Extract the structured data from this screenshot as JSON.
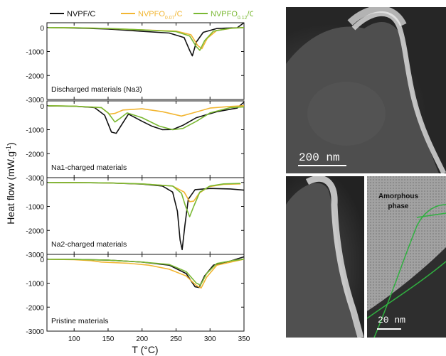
{
  "chart_data": {
    "type": "line",
    "xlabel": "T (°C)",
    "ylabel": "Heat flow (mW.g",
    "ylabel_sup": "-1",
    "ylabel_close": ")",
    "xlim": [
      60,
      350
    ],
    "x_ticks": [
      "100",
      "150",
      "200",
      "250",
      "300",
      "350"
    ],
    "x_tick_values": [
      100,
      150,
      200,
      250,
      300,
      350
    ],
    "ylim": [
      -3000,
      200
    ],
    "y_ticks": [
      "0",
      "-1000",
      "-2000",
      "-3000"
    ],
    "y_tick_values": [
      0,
      -1000,
      -2000,
      -3000
    ],
    "legend": [
      {
        "base": "NVPF/C",
        "sub": "",
        "tail": "",
        "color": "#111111"
      },
      {
        "base": "NVPFO",
        "sub": "0.07",
        "tail": "/C",
        "color": "#f2b632"
      },
      {
        "base": "NVPFO",
        "sub": "0.12",
        "tail": "/C",
        "color": "#7ab833"
      }
    ],
    "panels": [
      {
        "label": "Discharged materials (Na3)",
        "series": [
          {
            "color": "#111111",
            "points": [
              [
                62,
                0
              ],
              [
                100,
                -20
              ],
              [
                150,
                -60
              ],
              [
                200,
                -160
              ],
              [
                240,
                -230
              ],
              [
                262,
                -420
              ],
              [
                270,
                -950
              ],
              [
                274,
                -1180
              ],
              [
                280,
                -600
              ],
              [
                290,
                -200
              ],
              [
                310,
                -40
              ],
              [
                340,
                -10
              ],
              [
                350,
                200
              ]
            ]
          },
          {
            "color": "#f2b632",
            "points": [
              [
                62,
                0
              ],
              [
                100,
                -10
              ],
              [
                150,
                -40
              ],
              [
                200,
                -100
              ],
              [
                250,
                -150
              ],
              [
                272,
                -300
              ],
              [
                282,
                -750
              ],
              [
                288,
                -880
              ],
              [
                296,
                -450
              ],
              [
                310,
                -120
              ],
              [
                335,
                -20
              ],
              [
                350,
                0
              ]
            ]
          },
          {
            "color": "#7ab833",
            "points": [
              [
                62,
                0
              ],
              [
                100,
                -10
              ],
              [
                150,
                -40
              ],
              [
                200,
                -100
              ],
              [
                250,
                -170
              ],
              [
                270,
                -350
              ],
              [
                280,
                -800
              ],
              [
                285,
                -950
              ],
              [
                292,
                -550
              ],
              [
                305,
                -150
              ],
              [
                330,
                -30
              ],
              [
                350,
                0
              ]
            ]
          }
        ]
      },
      {
        "label": "Na1-charged materials",
        "series": [
          {
            "color": "#111111",
            "points": [
              [
                62,
                -10
              ],
              [
                100,
                -20
              ],
              [
                130,
                -80
              ],
              [
                145,
                -400
              ],
              [
                155,
                -1100
              ],
              [
                162,
                -1150
              ],
              [
                172,
                -700
              ],
              [
                180,
                -350
              ],
              [
                200,
                -650
              ],
              [
                215,
                -860
              ],
              [
                230,
                -1000
              ],
              [
                245,
                -990
              ],
              [
                260,
                -820
              ],
              [
                280,
                -500
              ],
              [
                310,
                -250
              ],
              [
                340,
                -100
              ],
              [
                350,
                150
              ]
            ]
          },
          {
            "color": "#f2b632",
            "points": [
              [
                62,
                0
              ],
              [
                100,
                -20
              ],
              [
                140,
                -80
              ],
              [
                152,
                -350
              ],
              [
                160,
                -320
              ],
              [
                172,
                -180
              ],
              [
                200,
                -130
              ],
              [
                230,
                -250
              ],
              [
                258,
                -430
              ],
              [
                275,
                -300
              ],
              [
                300,
                -100
              ],
              [
                330,
                -30
              ],
              [
                350,
                0
              ]
            ]
          },
          {
            "color": "#7ab833",
            "points": [
              [
                62,
                0
              ],
              [
                100,
                -20
              ],
              [
                140,
                -80
              ],
              [
                150,
                -300
              ],
              [
                160,
                -680
              ],
              [
                168,
                -520
              ],
              [
                178,
                -300
              ],
              [
                200,
                -500
              ],
              [
                225,
                -850
              ],
              [
                245,
                -1000
              ],
              [
                260,
                -950
              ],
              [
                280,
                -650
              ],
              [
                300,
                -300
              ],
              [
                330,
                -80
              ],
              [
                350,
                -50
              ]
            ]
          }
        ]
      },
      {
        "label": "Na2-charged materials",
        "series": [
          {
            "color": "#111111",
            "points": [
              [
                62,
                0
              ],
              [
                150,
                -20
              ],
              [
                200,
                -70
              ],
              [
                230,
                -150
              ],
              [
                245,
                -400
              ],
              [
                252,
                -1200
              ],
              [
                256,
                -2400
              ],
              [
                259,
                -2800
              ],
              [
                263,
                -1800
              ],
              [
                268,
                -700
              ],
              [
                278,
                -300
              ],
              [
                300,
                -250
              ],
              [
                330,
                -270
              ],
              [
                350,
                -320
              ]
            ]
          },
          {
            "color": "#f2b632",
            "points": [
              [
                62,
                0
              ],
              [
                150,
                -20
              ],
              [
                200,
                -60
              ],
              [
                245,
                -150
              ],
              [
                262,
                -400
              ],
              [
                270,
                -800
              ],
              [
                276,
                -780
              ],
              [
                284,
                -450
              ],
              [
                298,
                -180
              ],
              [
                320,
                -80
              ],
              [
                345,
                -60
              ]
            ]
          },
          {
            "color": "#7ab833",
            "points": [
              [
                62,
                0
              ],
              [
                150,
                -20
              ],
              [
                200,
                -60
              ],
              [
                245,
                -150
              ],
              [
                258,
                -450
              ],
              [
                264,
                -1000
              ],
              [
                270,
                -1430
              ],
              [
                276,
                -1000
              ],
              [
                285,
                -400
              ],
              [
                300,
                -150
              ],
              [
                320,
                -60
              ],
              [
                345,
                -40
              ]
            ]
          }
        ]
      },
      {
        "label": "Pristine materials",
        "series": [
          {
            "color": "#111111",
            "points": [
              [
                62,
                0
              ],
              [
                100,
                -10
              ],
              [
                150,
                -40
              ],
              [
                200,
                -120
              ],
              [
                240,
                -250
              ],
              [
                265,
                -600
              ],
              [
                278,
                -1150
              ],
              [
                284,
                -1180
              ],
              [
                292,
                -700
              ],
              [
                305,
                -250
              ],
              [
                330,
                -80
              ],
              [
                350,
                100
              ]
            ]
          },
          {
            "color": "#f2b632",
            "points": [
              [
                62,
                0
              ],
              [
                100,
                -20
              ],
              [
                125,
                -60
              ],
              [
                140,
                -120
              ],
              [
                180,
                -170
              ],
              [
                210,
                -250
              ],
              [
                240,
                -420
              ],
              [
                265,
                -700
              ],
              [
                280,
                -1100
              ],
              [
                287,
                -1200
              ],
              [
                295,
                -750
              ],
              [
                310,
                -250
              ],
              [
                340,
                -60
              ],
              [
                350,
                0
              ]
            ]
          },
          {
            "color": "#7ab833",
            "points": [
              [
                62,
                0
              ],
              [
                100,
                -10
              ],
              [
                150,
                -40
              ],
              [
                200,
                -120
              ],
              [
                240,
                -220
              ],
              [
                265,
                -520
              ],
              [
                280,
                -1000
              ],
              [
                286,
                -1080
              ],
              [
                295,
                -600
              ],
              [
                310,
                -180
              ],
              [
                335,
                -50
              ],
              [
                350,
                0
              ]
            ]
          }
        ]
      }
    ]
  },
  "micrographs": {
    "top_scale": "200 nm",
    "inset_scale": "20 nm",
    "inset_label_line1": "Amorphous",
    "inset_label_line2": "phase"
  }
}
